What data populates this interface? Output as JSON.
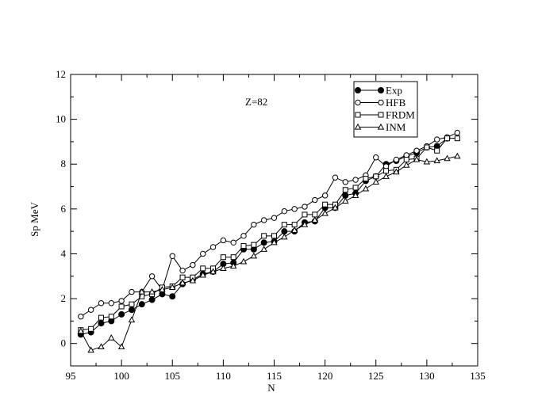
{
  "chart_data": {
    "type": "line",
    "xlabel": "N",
    "ylabel": "Sp MeV",
    "annotation": "Z=82",
    "xlim": [
      95,
      135
    ],
    "ylim": [
      -1,
      12
    ],
    "xticks": [
      95,
      100,
      105,
      110,
      115,
      120,
      125,
      130,
      135
    ],
    "yticks": [
      0,
      2,
      4,
      6,
      8,
      10,
      12
    ],
    "grid": false,
    "legend_position": "top-right",
    "series": [
      {
        "name": "Exp",
        "marker": "filled-circle",
        "x": [
          96,
          97,
          98,
          99,
          100,
          101,
          102,
          103,
          104,
          105,
          106,
          107,
          108,
          109,
          110,
          111,
          112,
          113,
          114,
          115,
          116,
          117,
          118,
          119,
          120,
          121,
          122,
          123,
          124,
          125,
          126,
          127,
          128,
          129,
          130,
          131,
          132
        ],
        "y": [
          0.4,
          0.5,
          0.9,
          1.0,
          1.3,
          1.5,
          1.75,
          1.95,
          2.2,
          2.1,
          2.65,
          2.85,
          3.1,
          3.2,
          3.55,
          3.6,
          4.2,
          4.2,
          4.5,
          4.55,
          5.0,
          5.0,
          5.4,
          5.45,
          6.05,
          6.05,
          6.6,
          6.7,
          7.25,
          7.45,
          8.0,
          8.15,
          8.35,
          8.5,
          8.75,
          8.8,
          9.15
        ]
      },
      {
        "name": "HFB",
        "marker": "open-circle",
        "x": [
          96,
          97,
          98,
          99,
          100,
          101,
          102,
          103,
          104,
          105,
          106,
          107,
          108,
          109,
          110,
          111,
          112,
          113,
          114,
          115,
          116,
          117,
          118,
          119,
          120,
          121,
          122,
          123,
          124,
          125,
          126,
          127,
          128,
          129,
          130,
          131,
          132,
          133
        ],
        "y": [
          1.2,
          1.5,
          1.8,
          1.8,
          1.9,
          2.3,
          2.3,
          3.0,
          2.4,
          3.9,
          3.25,
          3.5,
          4.0,
          4.3,
          4.6,
          4.5,
          4.8,
          5.3,
          5.5,
          5.6,
          5.9,
          6.0,
          6.1,
          6.4,
          6.6,
          7.4,
          7.2,
          7.3,
          7.5,
          8.3,
          7.9,
          8.2,
          8.4,
          8.6,
          8.8,
          9.1,
          9.2,
          9.4
        ]
      },
      {
        "name": "FRDM",
        "marker": "open-square",
        "x": [
          96,
          97,
          98,
          99,
          100,
          101,
          102,
          103,
          104,
          105,
          106,
          107,
          108,
          109,
          110,
          111,
          112,
          113,
          114,
          115,
          116,
          117,
          118,
          119,
          120,
          121,
          122,
          123,
          124,
          125,
          126,
          127,
          128,
          129,
          130,
          131,
          132,
          133
        ],
        "y": [
          0.6,
          0.65,
          1.15,
          1.2,
          1.65,
          1.75,
          2.1,
          2.2,
          2.5,
          2.55,
          2.95,
          2.95,
          3.35,
          3.35,
          3.85,
          3.85,
          4.35,
          4.4,
          4.8,
          4.8,
          5.3,
          5.3,
          5.75,
          5.75,
          6.2,
          6.2,
          6.85,
          6.95,
          7.35,
          7.45,
          7.7,
          7.75,
          8.2,
          8.25,
          8.75,
          8.6,
          9.15,
          9.15
        ]
      },
      {
        "name": "INM",
        "marker": "open-triangle",
        "x": [
          96,
          97,
          98,
          99,
          100,
          101,
          102,
          103,
          104,
          105,
          106,
          107,
          108,
          109,
          110,
          111,
          112,
          113,
          114,
          115,
          116,
          117,
          118,
          119,
          120,
          121,
          122,
          123,
          124,
          125,
          126,
          127,
          128,
          129,
          130,
          131,
          132,
          133
        ],
        "y": [
          0.55,
          -0.3,
          -0.15,
          0.25,
          -0.15,
          1.05,
          2.3,
          2.3,
          2.4,
          2.5,
          2.7,
          2.8,
          3.05,
          3.2,
          3.35,
          3.45,
          3.65,
          3.9,
          4.2,
          4.5,
          4.75,
          5.05,
          5.3,
          5.5,
          5.8,
          6.05,
          6.35,
          6.6,
          6.9,
          7.2,
          7.45,
          7.65,
          7.95,
          8.2,
          8.1,
          8.15,
          8.25,
          8.35
        ]
      }
    ]
  }
}
